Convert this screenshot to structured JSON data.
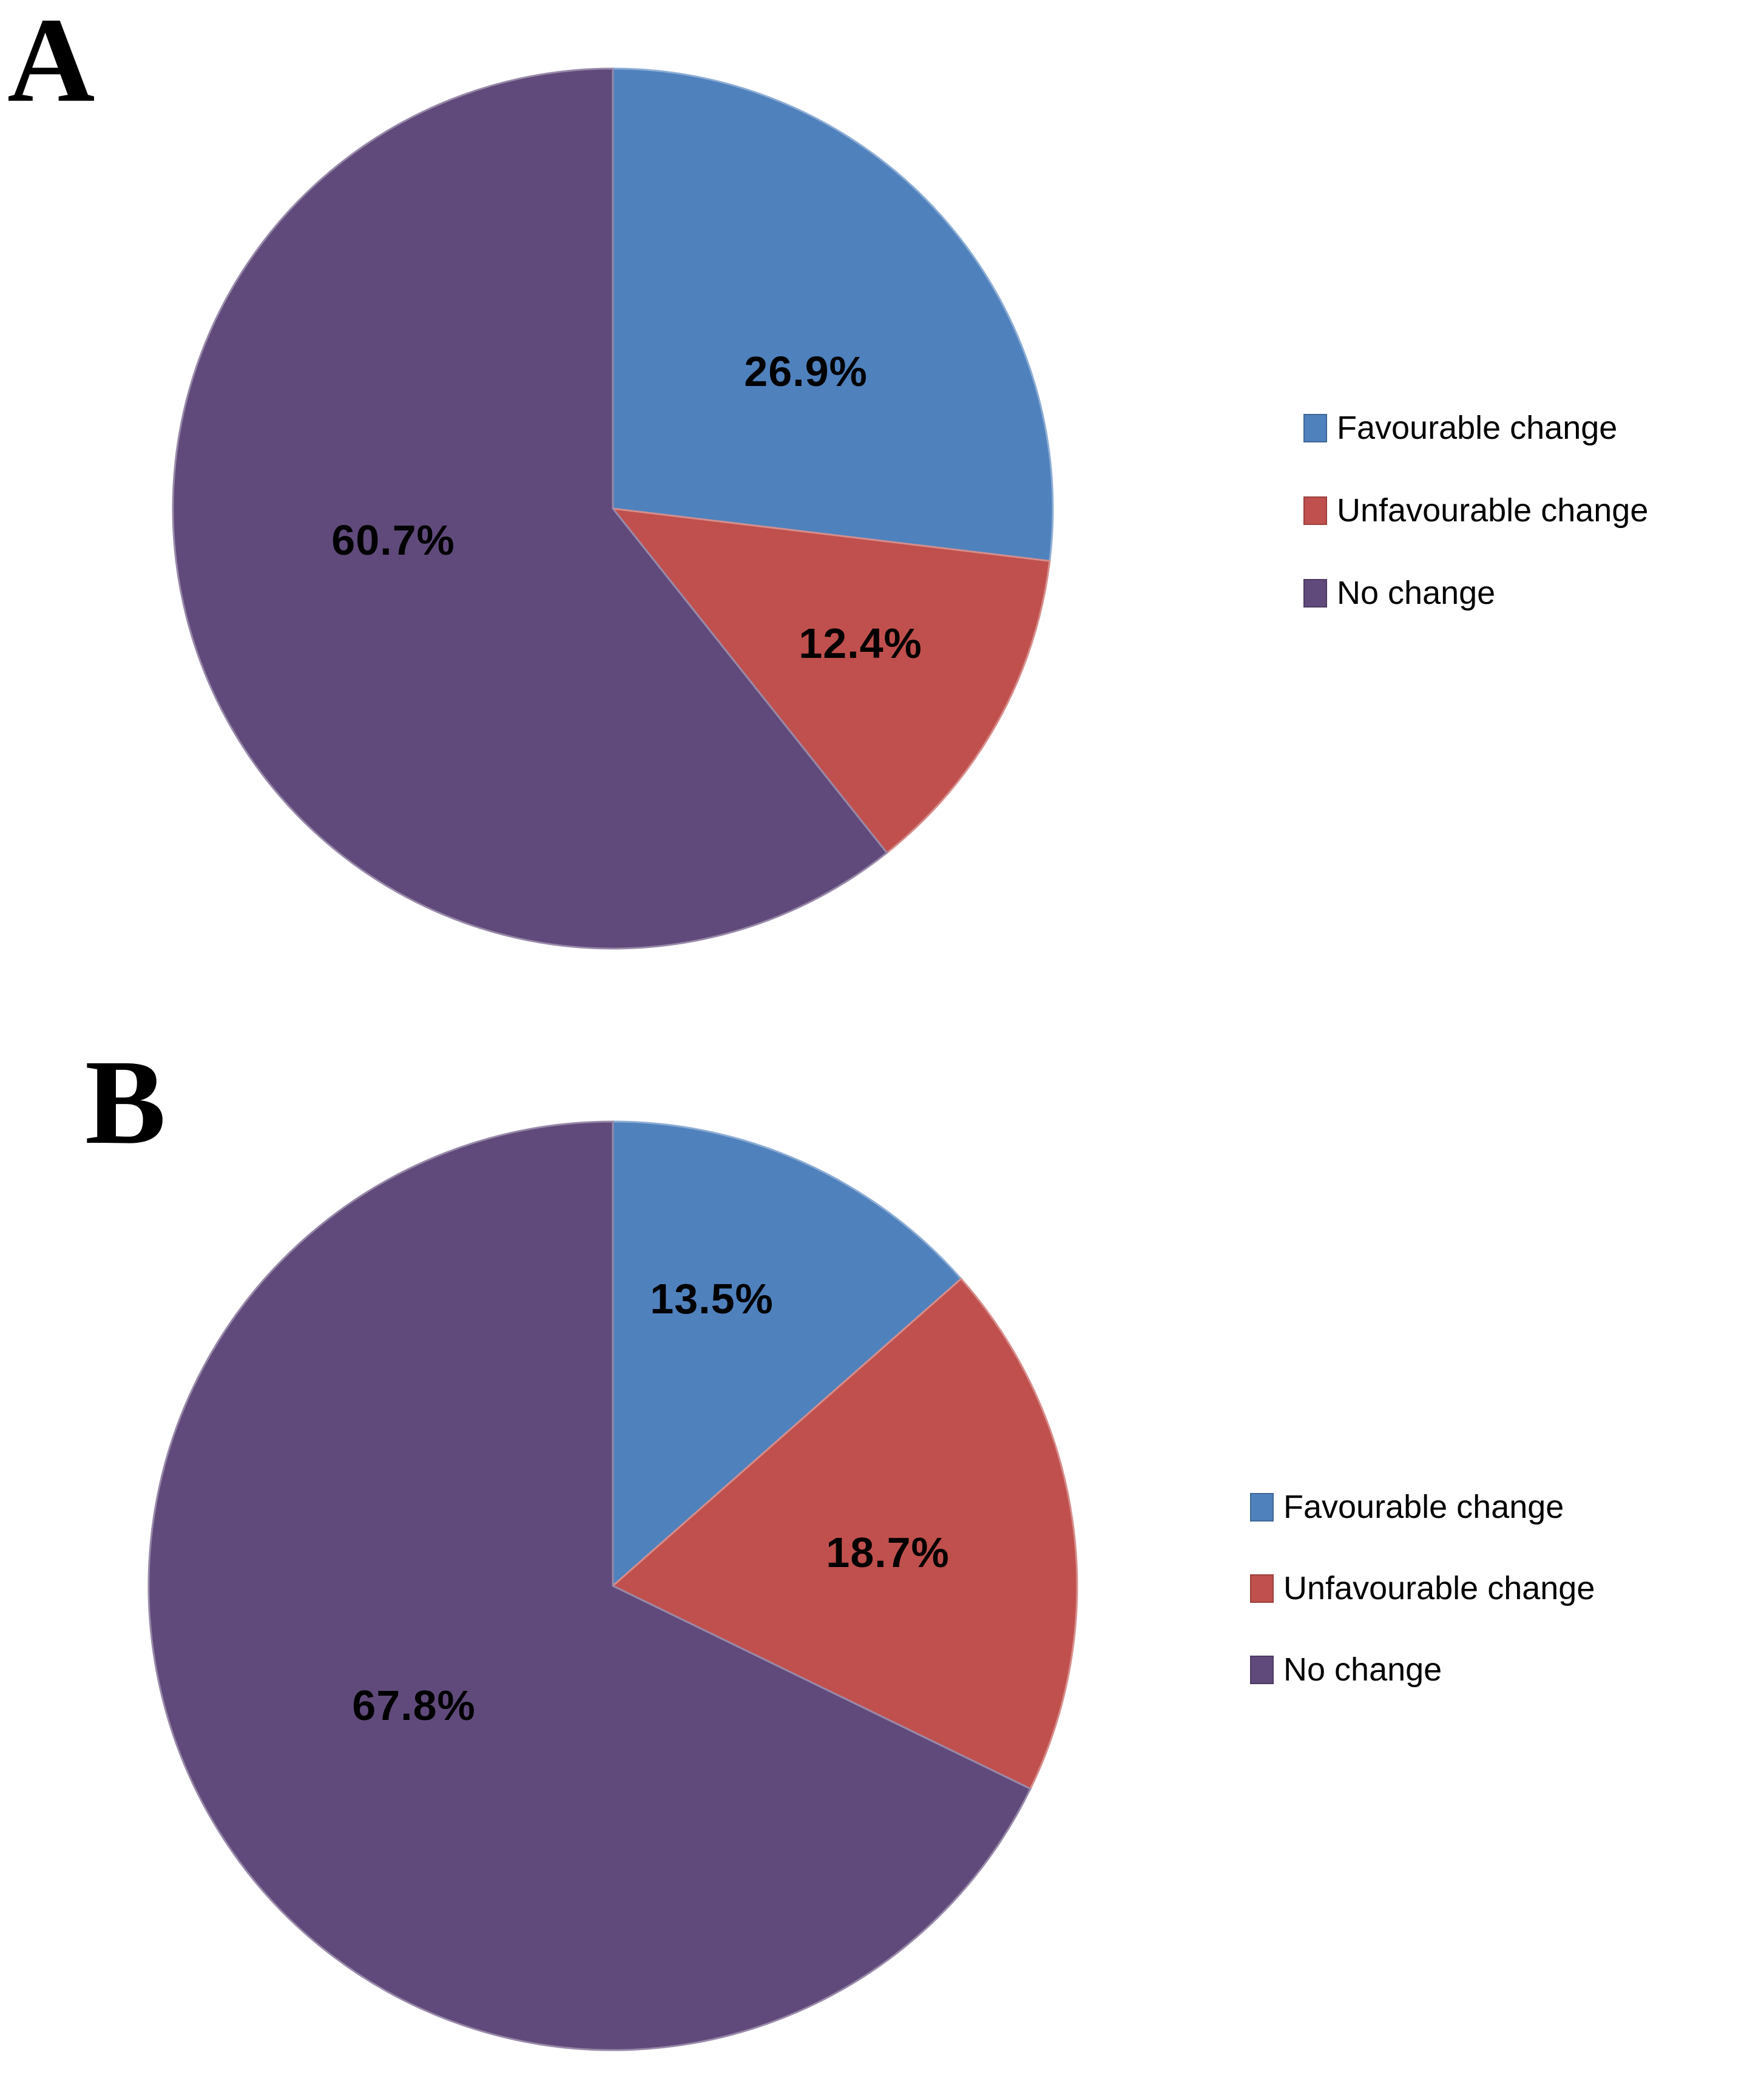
{
  "figure": {
    "background": "#FFFFFF",
    "text_color": "#000000"
  },
  "chart_data": [
    {
      "type": "pie",
      "title": "A",
      "categories": [
        "Favourable change",
        "Unfavourable change",
        "No change"
      ],
      "values": [
        26.9,
        12.4,
        60.7
      ],
      "labels": [
        "26.9%",
        "12.4%",
        "60.7%"
      ],
      "colors": [
        "#4F81BD",
        "#C0504D",
        "#604A7B"
      ],
      "start_angle_deg": 0,
      "direction": "clockwise",
      "legend_position": "right",
      "data_label_color": "#000000"
    },
    {
      "type": "pie",
      "title": "B",
      "categories": [
        "Favourable change",
        "Unfavourable change",
        "No change"
      ],
      "values": [
        13.5,
        18.7,
        67.8
      ],
      "labels": [
        "13.5%",
        "18.7%",
        "67.8%"
      ],
      "colors": [
        "#4F81BD",
        "#C0504D",
        "#604A7B"
      ],
      "start_angle_deg": 0,
      "direction": "clockwise",
      "legend_position": "right",
      "data_label_color": "#000000"
    }
  ]
}
